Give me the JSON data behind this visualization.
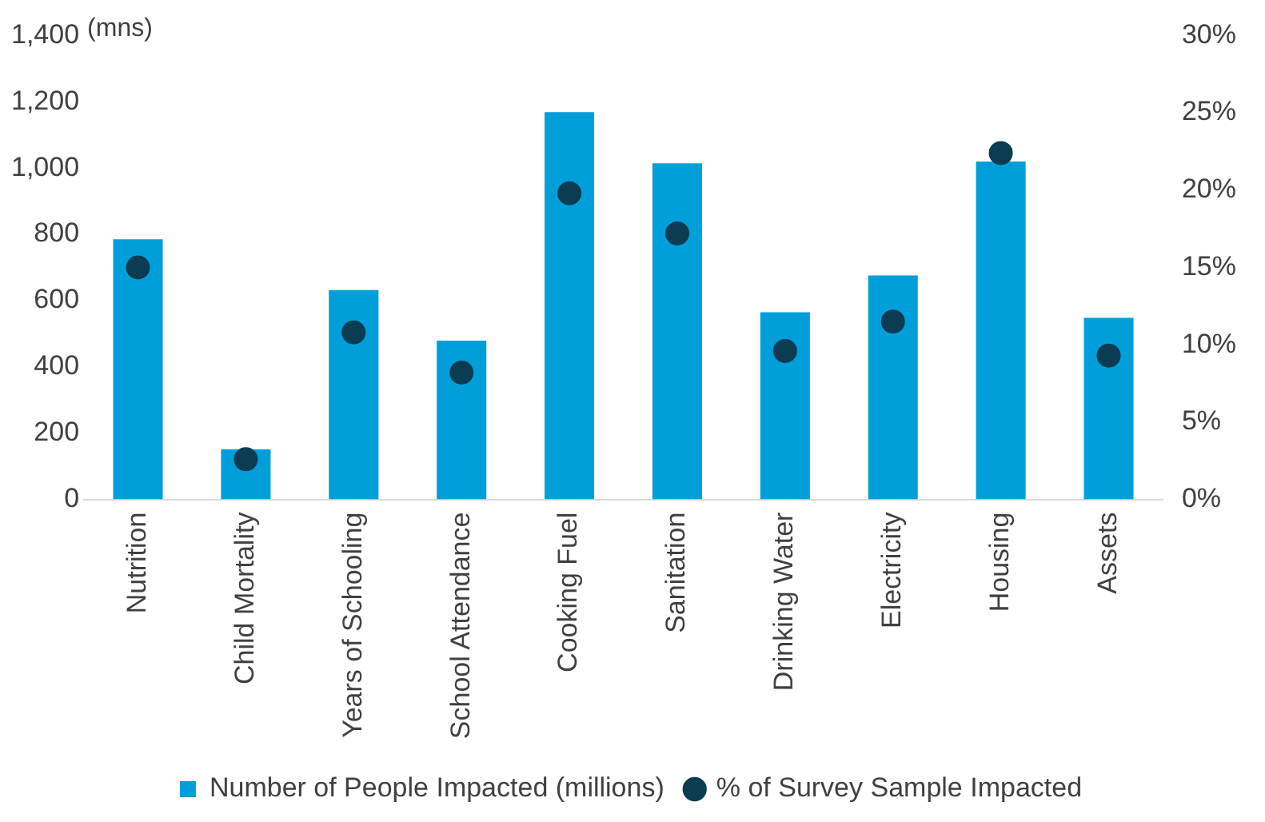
{
  "chart_data": {
    "type": "bar",
    "ylabel": "(mns)",
    "categories": [
      "Nutrition",
      "Child Mortality",
      "Years of Schooling",
      "School Attendance",
      "Cooking Fuel",
      "Sanitation",
      "Drinking Water",
      "Electricity",
      "Housing",
      "Assets"
    ],
    "series": [
      {
        "name": "Number of People Impacted (millions)",
        "color": "#009fda",
        "values": [
          785,
          151,
          632,
          479,
          1169,
          1014,
          565,
          676,
          1020,
          548
        ]
      },
      {
        "name": "% of Survey Sample Impacted",
        "type": "scatter",
        "axis": "y2",
        "marker": "circle",
        "color": "#0b3c52",
        "values": [
          15.0,
          2.6,
          10.8,
          8.2,
          19.8,
          17.2,
          9.6,
          11.5,
          22.4,
          9.3
        ]
      }
    ],
    "ylim": [
      0,
      1400
    ],
    "yticks": [
      0,
      200,
      400,
      600,
      800,
      {
        "value": 1000,
        "label": "1,000"
      },
      {
        "value": 1200,
        "label": "1,200"
      },
      {
        "value": 1400,
        "label": "1,400"
      }
    ],
    "y2lim": [
      0,
      30
    ],
    "y2ticks": [
      {
        "value": 0,
        "label": "0%"
      },
      {
        "value": 5,
        "label": "5%"
      },
      {
        "value": 10,
        "label": "10%"
      },
      {
        "value": 15,
        "label": "15%"
      },
      {
        "value": 20,
        "label": "20%"
      },
      {
        "value": 25,
        "label": "25%"
      },
      {
        "value": 30,
        "label": "30%"
      }
    ],
    "grid": false,
    "legend": "bottom"
  }
}
